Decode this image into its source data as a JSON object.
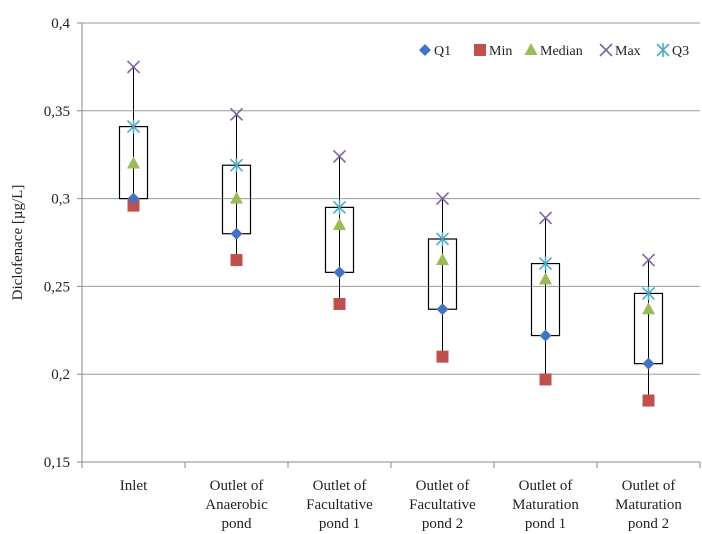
{
  "chart_data": {
    "type": "box",
    "ylabel": "Diclofenace [µg/L]",
    "ylim": [
      0.15,
      0.4
    ],
    "yticks": [
      0.15,
      0.2,
      0.25,
      0.3,
      0.35,
      0.4
    ],
    "ytick_labels": [
      "0,15",
      "0,2",
      "0,25",
      "0,3",
      "0,35",
      "0,4"
    ],
    "grid": true,
    "legend_position": "top-right",
    "categories": [
      [
        "Inlet"
      ],
      [
        "Outlet of",
        "Anaerobic",
        "pond"
      ],
      [
        "Outlet of",
        "Facultative",
        "pond 1"
      ],
      [
        "Outlet of",
        "Facultative",
        "pond 2"
      ],
      [
        "Outlet of",
        "Maturation",
        "pond 1"
      ],
      [
        "Outlet of",
        "Maturation",
        "pond 2"
      ]
    ],
    "series": [
      {
        "name": "Q1",
        "marker": "diamond",
        "color": "#4472c4",
        "values": [
          0.3,
          0.28,
          0.258,
          0.237,
          0.222,
          0.206
        ]
      },
      {
        "name": "Min",
        "marker": "square",
        "color": "#c0504d",
        "values": [
          0.296,
          0.265,
          0.24,
          0.21,
          0.197,
          0.185
        ]
      },
      {
        "name": "Median",
        "marker": "triangle",
        "color": "#9bbb59",
        "values": [
          0.32,
          0.3,
          0.285,
          0.265,
          0.254,
          0.237
        ]
      },
      {
        "name": "Max",
        "marker": "x",
        "color": "#8064a2",
        "values": [
          0.375,
          0.348,
          0.324,
          0.3,
          0.289,
          0.265
        ]
      },
      {
        "name": "Q3",
        "marker": "asterisk",
        "color": "#4bacc6",
        "values": [
          0.341,
          0.319,
          0.295,
          0.277,
          0.263,
          0.246
        ]
      }
    ],
    "box_color": "#000000",
    "grid_color": "#9a9a9a"
  }
}
